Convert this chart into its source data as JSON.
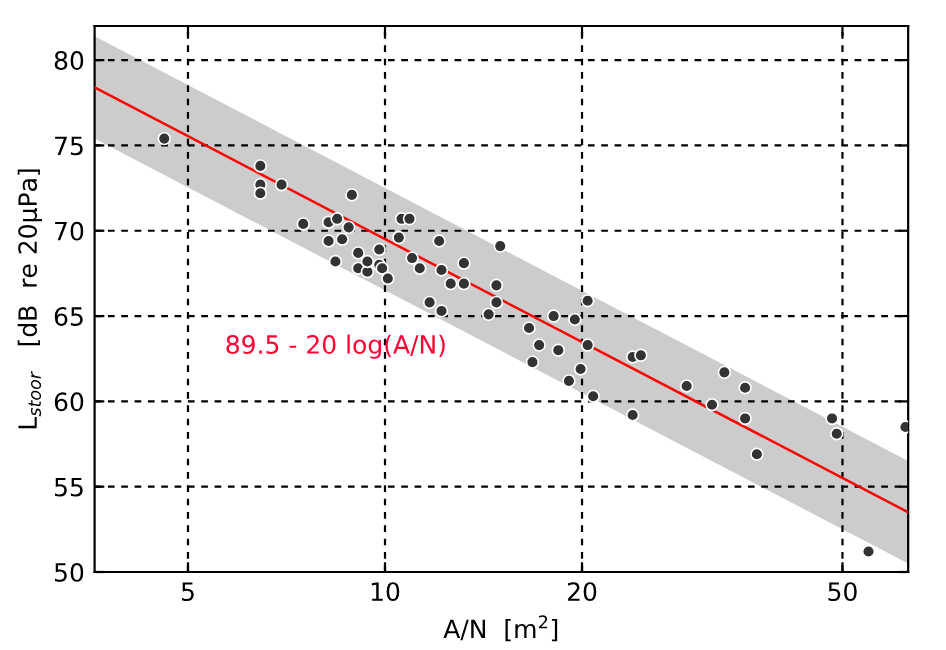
{
  "chart_data": {
    "type": "scatter",
    "xlabel": "A/N  [m$^{2}$]",
    "ylabel": "L$_{stoor}$   [dB  re 20μPa]",
    "log": "x",
    "xlim": [
      3.6,
      63
    ],
    "ylim": [
      50,
      82
    ],
    "xticks": [
      5,
      10,
      20,
      50
    ],
    "yticks": [
      50,
      55,
      60,
      65,
      70,
      75,
      80
    ],
    "grid": true,
    "annotations": [
      "89.5 - 20 log(A/N)"
    ],
    "series": [
      {
        "type": "line",
        "color": "#ff0000",
        "x": [
          3.6,
          63
        ],
        "values": [
          78.4,
          53.5
        ],
        "lower": [
          75.4,
          50.5
        ],
        "upper": [
          81.4,
          56.5
        ],
        "line_style": "solid",
        "marker": "none"
      },
      {
        "color": "#333333",
        "marker": "circle",
        "x": [
          4.6,
          6.45,
          6.45,
          6.45,
          6.95,
          8.9,
          7.5,
          8.2,
          8.45,
          8.2,
          8.6,
          8.8,
          8.4,
          9.1,
          9.1,
          9.4,
          9.4,
          9.8,
          9.8,
          9.9,
          10.1,
          10.6,
          10.9,
          10.5,
          11.0,
          11.3,
          12.1,
          12.2,
          12.6,
          13.2,
          13.2,
          11.7,
          12.2,
          14.4,
          14.8,
          14.8,
          15.0,
          16.6,
          17.2,
          16.8,
          18.1,
          18.4,
          19.1,
          19.5,
          19.9,
          20.4,
          20.4,
          20.8,
          23.9,
          24.6,
          23.9,
          28.9,
          31.6,
          33.0,
          35.5,
          35.5,
          37.0,
          48.2,
          49.0,
          54.8,
          62.4
        ],
        "values": [
          75.4,
          73.8,
          72.7,
          72.2,
          72.7,
          72.1,
          70.4,
          70.5,
          70.7,
          69.4,
          69.5,
          70.2,
          68.2,
          68.7,
          67.8,
          67.6,
          68.2,
          68.9,
          68.0,
          67.8,
          67.2,
          70.7,
          70.7,
          69.6,
          68.4,
          67.8,
          69.4,
          67.7,
          66.9,
          68.1,
          66.9,
          65.8,
          65.3,
          65.1,
          66.8,
          65.8,
          69.1,
          64.3,
          63.3,
          62.3,
          65.0,
          63.0,
          61.2,
          64.8,
          61.9,
          65.9,
          63.3,
          60.3,
          62.6,
          62.7,
          59.2,
          60.9,
          59.8,
          61.7,
          60.8,
          59.0,
          56.9,
          59.0,
          58.1,
          51.2,
          58.5
        ]
      }
    ]
  }
}
